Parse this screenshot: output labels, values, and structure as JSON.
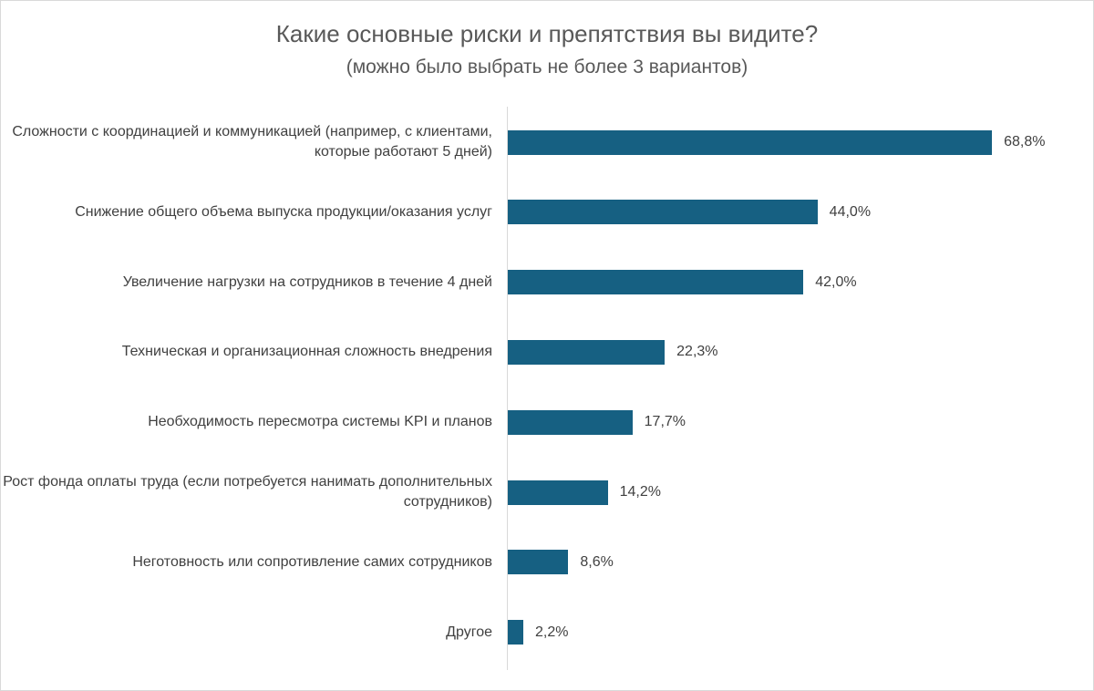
{
  "chart_data": {
    "type": "bar",
    "orientation": "horizontal",
    "title": "Какие основные риски и препятствия вы видите?",
    "subtitle": "(можно было выбрать не более 3 вариантов)",
    "categories": [
      "Сложности с координацией и коммуникацией (например, с клиентами, которые работают 5 дней)",
      "Снижение общего объема выпуска продукции/оказания услуг",
      "Увеличение нагрузки на сотрудников в течение 4 дней",
      "Техническая и организационная сложность внедрения",
      "Необходимость пересмотра системы KPI и планов",
      "Рост фонда оплаты труда (если потребуется нанимать дополнительных сотрудников)",
      "Неготовность или сопротивление самих сотрудников",
      "Другое"
    ],
    "values": [
      68.8,
      44.0,
      42.0,
      22.3,
      17.7,
      14.2,
      8.6,
      2.2
    ],
    "labels": [
      "68,8%",
      "44,0%",
      "42,0%",
      "22,3%",
      "17,7%",
      "14,2%",
      "8,6%",
      "2,2%"
    ],
    "unit": "%",
    "xlim": [
      0,
      80
    ],
    "grid": false,
    "legend": "none",
    "bar_color": "#166082"
  }
}
